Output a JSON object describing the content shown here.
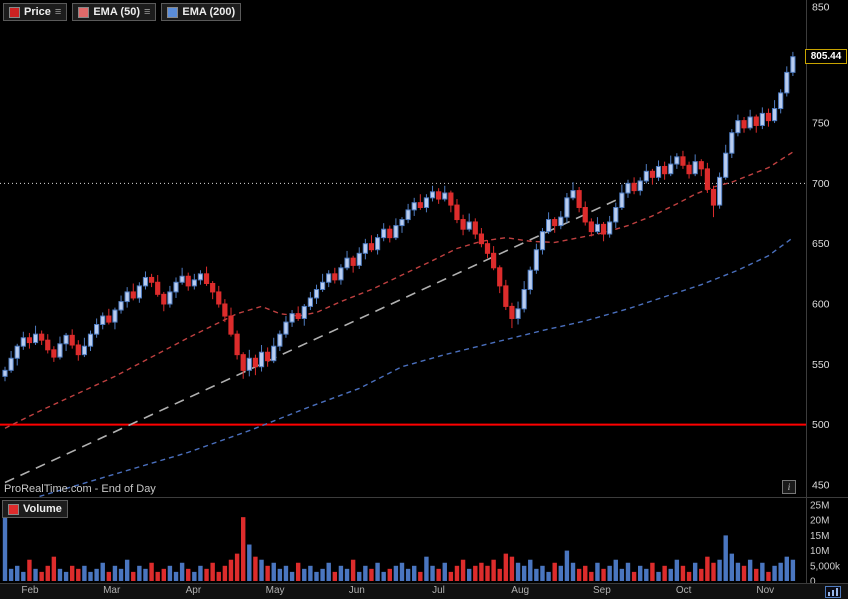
{
  "icons": {
    "menu": "≡",
    "info": "i"
  },
  "legend": {
    "items": [
      {
        "label": "Price",
        "swatch": "#cc2222",
        "menu_icon": true
      },
      {
        "label": "EMA (50)",
        "swatch": "#e06a6a",
        "menu_icon": true
      },
      {
        "label": "EMA (200)",
        "swatch": "#5b8dd9",
        "menu_icon": false
      }
    ]
  },
  "watermark": "ProRealTime.com - End of Day",
  "price_axis": {
    "ticks": [
      {
        "label": "850",
        "v": 850
      },
      {
        "label": "750",
        "v": 750
      },
      {
        "label": "700",
        "v": 700
      },
      {
        "label": "650",
        "v": 650
      },
      {
        "label": "600",
        "v": 600
      },
      {
        "label": "550",
        "v": 550
      },
      {
        "label": "500",
        "v": 500
      },
      {
        "label": "450",
        "v": 450
      }
    ],
    "last_price_label": "805.44"
  },
  "volume_panel": {
    "label": "Volume",
    "ticks": [
      {
        "label": "25M",
        "v": 25
      },
      {
        "label": "20M",
        "v": 20
      },
      {
        "label": "15M",
        "v": 15
      },
      {
        "label": "10M",
        "v": 10
      },
      {
        "label": "5,000k",
        "v": 5
      },
      {
        "label": "0",
        "v": 0
      }
    ]
  },
  "x_axis": {
    "months": [
      "Feb",
      "Mar",
      "Apr",
      "May",
      "Jun",
      "Jul",
      "Aug",
      "Sep",
      "Oct",
      "Nov"
    ]
  },
  "colors": {
    "up_fill": "#b9cdf0",
    "up_stroke": "#4f7cc0",
    "down": "#dd2c2c",
    "vol_up": "#4a76c0",
    "ema50": "#bf4040",
    "ema200": "#4a6fbd",
    "trendline": "#b0b0b0",
    "hline_red": "#ff0000",
    "dotted": "#dddddd"
  },
  "chart_data": {
    "type": "candlestick",
    "title": "",
    "y_range": [
      440,
      852
    ],
    "last_price": 805.44,
    "hlines": [
      {
        "value": 700,
        "style": "dotted"
      },
      {
        "value": 500,
        "style": "solid-red"
      }
    ],
    "legend_series": [
      "Price",
      "EMA (50)",
      "EMA (200)"
    ],
    "candles": [
      [
        540,
        548,
        536,
        545
      ],
      [
        545,
        561,
        543,
        555
      ],
      [
        555,
        567,
        549,
        565
      ],
      [
        565,
        577,
        562,
        572
      ],
      [
        572,
        576,
        563,
        568
      ],
      [
        568,
        582,
        566,
        575
      ],
      [
        575,
        578,
        566,
        570
      ],
      [
        570,
        575,
        559,
        562
      ],
      [
        562,
        565,
        552,
        556
      ],
      [
        556,
        573,
        554,
        567
      ],
      [
        567,
        576,
        561,
        574
      ],
      [
        574,
        579,
        563,
        566
      ],
      [
        566,
        570,
        553,
        558
      ],
      [
        558,
        572,
        556,
        565
      ],
      [
        565,
        578,
        561,
        575
      ],
      [
        575,
        588,
        572,
        583
      ],
      [
        583,
        593,
        579,
        590
      ],
      [
        590,
        596,
        583,
        585
      ],
      [
        585,
        597,
        579,
        595
      ],
      [
        595,
        607,
        592,
        602
      ],
      [
        602,
        614,
        597,
        610
      ],
      [
        610,
        617,
        603,
        605
      ],
      [
        605,
        618,
        601,
        615
      ],
      [
        615,
        627,
        612,
        622
      ],
      [
        622,
        625,
        614,
        618
      ],
      [
        618,
        624,
        606,
        608
      ],
      [
        608,
        610,
        594,
        600
      ],
      [
        600,
        615,
        597,
        610
      ],
      [
        610,
        622,
        605,
        618
      ],
      [
        618,
        630,
        616,
        623
      ],
      [
        623,
        626,
        611,
        615
      ],
      [
        615,
        625,
        612,
        620
      ],
      [
        620,
        628,
        616,
        625
      ],
      [
        625,
        631,
        615,
        617
      ],
      [
        617,
        619,
        604,
        610
      ],
      [
        610,
        615,
        597,
        600
      ],
      [
        600,
        604,
        585,
        590
      ],
      [
        590,
        597,
        573,
        575
      ],
      [
        575,
        578,
        554,
        558
      ],
      [
        558,
        560,
        538,
        545
      ],
      [
        545,
        562,
        540,
        555
      ],
      [
        555,
        558,
        541,
        548
      ],
      [
        548,
        566,
        544,
        560
      ],
      [
        560,
        564,
        548,
        553
      ],
      [
        553,
        572,
        551,
        565
      ],
      [
        565,
        578,
        561,
        575
      ],
      [
        575,
        590,
        572,
        585
      ],
      [
        585,
        595,
        581,
        592
      ],
      [
        592,
        598,
        586,
        588
      ],
      [
        588,
        600,
        582,
        598
      ],
      [
        598,
        610,
        595,
        605
      ],
      [
        605,
        616,
        600,
        612
      ],
      [
        612,
        625,
        610,
        618
      ],
      [
        618,
        628,
        614,
        625
      ],
      [
        625,
        630,
        617,
        620
      ],
      [
        620,
        633,
        616,
        630
      ],
      [
        630,
        644,
        628,
        638
      ],
      [
        638,
        640,
        626,
        632
      ],
      [
        632,
        647,
        629,
        642
      ],
      [
        642,
        654,
        637,
        650
      ],
      [
        650,
        657,
        643,
        645
      ],
      [
        645,
        658,
        641,
        655
      ],
      [
        655,
        667,
        652,
        662
      ],
      [
        662,
        665,
        651,
        655
      ],
      [
        655,
        671,
        653,
        665
      ],
      [
        665,
        672,
        659,
        670
      ],
      [
        670,
        683,
        667,
        678
      ],
      [
        678,
        688,
        673,
        684
      ],
      [
        684,
        691,
        678,
        680
      ],
      [
        680,
        691,
        676,
        688
      ],
      [
        688,
        698,
        685,
        693
      ],
      [
        693,
        696,
        683,
        687
      ],
      [
        687,
        698,
        685,
        692
      ],
      [
        692,
        694,
        676,
        682
      ],
      [
        682,
        687,
        667,
        670
      ],
      [
        670,
        674,
        657,
        662
      ],
      [
        662,
        675,
        660,
        668
      ],
      [
        668,
        671,
        654,
        658
      ],
      [
        658,
        663,
        647,
        650
      ],
      [
        650,
        653,
        638,
        642
      ],
      [
        642,
        648,
        628,
        630
      ],
      [
        630,
        632,
        609,
        615
      ],
      [
        615,
        620,
        595,
        598
      ],
      [
        598,
        601,
        580,
        588
      ],
      [
        588,
        602,
        583,
        596
      ],
      [
        596,
        619,
        593,
        612
      ],
      [
        612,
        631,
        608,
        628
      ],
      [
        628,
        650,
        625,
        645
      ],
      [
        645,
        663,
        641,
        660
      ],
      [
        660,
        676,
        658,
        670
      ],
      [
        670,
        672,
        659,
        665
      ],
      [
        665,
        677,
        662,
        672
      ],
      [
        672,
        692,
        667,
        688
      ],
      [
        688,
        701,
        686,
        694
      ],
      [
        694,
        697,
        676,
        680
      ],
      [
        680,
        685,
        665,
        668
      ],
      [
        668,
        671,
        656,
        660
      ],
      [
        660,
        672,
        658,
        666
      ],
      [
        666,
        668,
        652,
        658
      ],
      [
        658,
        673,
        655,
        668
      ],
      [
        668,
        684,
        663,
        680
      ],
      [
        680,
        699,
        678,
        692
      ],
      [
        692,
        703,
        688,
        700
      ],
      [
        700,
        705,
        691,
        694
      ],
      [
        694,
        705,
        690,
        702
      ],
      [
        702,
        716,
        700,
        710
      ],
      [
        710,
        712,
        699,
        705
      ],
      [
        705,
        719,
        702,
        714
      ],
      [
        714,
        718,
        703,
        708
      ],
      [
        708,
        723,
        706,
        716
      ],
      [
        716,
        725,
        712,
        722
      ],
      [
        722,
        727,
        712,
        715
      ],
      [
        715,
        718,
        704,
        708
      ],
      [
        708,
        724,
        706,
        718
      ],
      [
        718,
        720,
        706,
        712
      ],
      [
        712,
        717,
        692,
        695
      ],
      [
        695,
        698,
        672,
        682
      ],
      [
        682,
        709,
        679,
        705
      ],
      [
        705,
        732,
        703,
        725
      ],
      [
        725,
        745,
        721,
        742
      ],
      [
        742,
        757,
        739,
        752
      ],
      [
        752,
        755,
        742,
        746
      ],
      [
        746,
        761,
        744,
        755
      ],
      [
        755,
        757,
        742,
        748
      ],
      [
        748,
        763,
        745,
        758
      ],
      [
        758,
        762,
        747,
        752
      ],
      [
        752,
        769,
        750,
        762
      ],
      [
        762,
        778,
        758,
        775
      ],
      [
        775,
        797,
        772,
        792
      ],
      [
        792,
        809,
        789,
        805
      ]
    ],
    "volumes_millions": [
      23,
      4,
      5,
      3,
      7,
      4,
      3,
      5,
      8,
      4,
      3,
      5,
      4,
      5,
      3,
      4,
      6,
      3,
      5,
      4,
      7,
      3,
      5,
      4,
      6,
      3,
      4,
      5,
      3,
      6,
      4,
      3,
      5,
      4,
      6,
      3,
      5,
      7,
      9,
      21,
      12,
      8,
      7,
      5,
      6,
      4,
      5,
      3,
      6,
      4,
      5,
      3,
      4,
      6,
      3,
      5,
      4,
      7,
      3,
      5,
      4,
      6,
      3,
      4,
      5,
      6,
      4,
      5,
      3,
      8,
      5,
      4,
      6,
      3,
      5,
      7,
      4,
      5,
      6,
      5,
      7,
      4,
      9,
      8,
      6,
      5,
      7,
      4,
      5,
      3,
      6,
      5,
      10,
      6,
      4,
      5,
      3,
      6,
      4,
      5,
      7,
      4,
      6,
      3,
      5,
      4,
      6,
      3,
      5,
      4,
      7,
      5,
      3,
      6,
      4,
      8,
      6,
      7,
      15,
      9,
      6,
      5,
      7,
      4,
      6,
      3,
      5,
      6,
      8,
      7
    ],
    "ema50_anchors": [
      [
        0,
        497
      ],
      [
        6,
        512
      ],
      [
        12,
        526
      ],
      [
        18,
        540
      ],
      [
        24,
        556
      ],
      [
        30,
        572
      ],
      [
        34,
        582
      ],
      [
        38,
        592
      ],
      [
        42,
        598
      ],
      [
        45,
        592
      ],
      [
        48,
        590
      ],
      [
        51,
        593
      ],
      [
        55,
        602
      ],
      [
        60,
        612
      ],
      [
        65,
        624
      ],
      [
        70,
        636
      ],
      [
        74,
        646
      ],
      [
        78,
        652
      ],
      [
        82,
        655
      ],
      [
        86,
        652
      ],
      [
        90,
        651
      ],
      [
        94,
        655
      ],
      [
        98,
        659
      ],
      [
        102,
        665
      ],
      [
        106,
        673
      ],
      [
        110,
        683
      ],
      [
        113,
        691
      ],
      [
        116,
        697
      ],
      [
        119,
        701
      ],
      [
        122,
        707
      ],
      [
        125,
        713
      ],
      [
        129,
        726
      ]
    ],
    "ema200_anchors": [
      [
        0,
        432
      ],
      [
        10,
        447
      ],
      [
        20,
        462
      ],
      [
        30,
        477
      ],
      [
        40,
        495
      ],
      [
        50,
        515
      ],
      [
        58,
        530
      ],
      [
        65,
        548
      ],
      [
        72,
        558
      ],
      [
        80,
        568
      ],
      [
        88,
        578
      ],
      [
        95,
        586
      ],
      [
        102,
        596
      ],
      [
        108,
        606
      ],
      [
        114,
        616
      ],
      [
        120,
        628
      ],
      [
        125,
        640
      ],
      [
        129,
        655
      ]
    ],
    "trendline": {
      "from": [
        0,
        452
      ],
      "to": [
        100,
        686
      ]
    },
    "volume_max_millions": 25
  }
}
